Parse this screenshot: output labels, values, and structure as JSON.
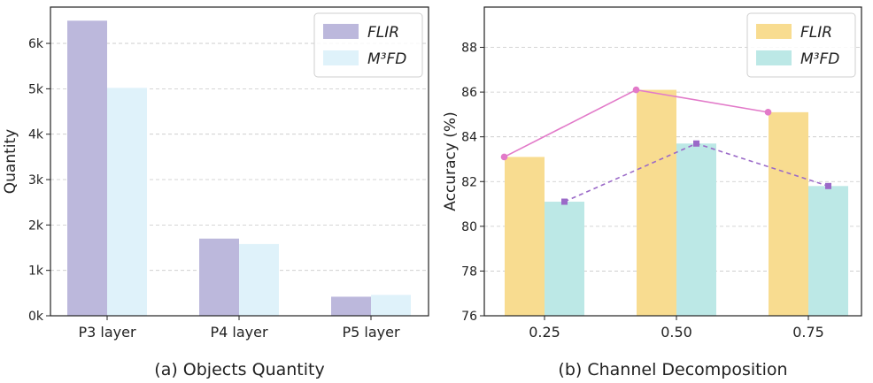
{
  "chart_data": [
    {
      "type": "bar",
      "title": "",
      "caption": "(a) Objects Quantity",
      "xlabel": "",
      "ylabel": "Quantity",
      "categories": [
        "P3 layer",
        "P4 layer",
        "P5 layer"
      ],
      "series": [
        {
          "name": "FLIR",
          "values": [
            6500,
            1700,
            420
          ],
          "color": "#bcb8dc"
        },
        {
          "name": "M3FD",
          "values": [
            5020,
            1580,
            460
          ],
          "color": "#dff2fa"
        }
      ],
      "ylim": [
        0,
        6800
      ],
      "yticks": [
        0,
        1000,
        2000,
        3000,
        4000,
        5000,
        6000
      ],
      "ytick_labels": [
        "0k",
        "1k",
        "2k",
        "3k",
        "4k",
        "5k",
        "6k"
      ],
      "grid": true,
      "legend": {
        "placement": "top-right",
        "labels": [
          "FLIR",
          "M³FD"
        ]
      }
    },
    {
      "type": "bar",
      "title": "",
      "caption": "(b) Channel Decomposition",
      "xlabel": "",
      "ylabel": "Accuracy (%)",
      "categories": [
        "0.25",
        "0.50",
        "0.75"
      ],
      "series": [
        {
          "name": "FLIR",
          "values": [
            83.1,
            86.1,
            85.1
          ],
          "color": "#f8dc90"
        },
        {
          "name": "M3FD",
          "values": [
            81.1,
            83.7,
            81.8
          ],
          "color": "#bce8e6"
        }
      ],
      "lines": [
        {
          "name": "FLIR trend",
          "values": [
            83.1,
            86.1,
            85.1
          ],
          "color": "#e27ac9",
          "style": "solid"
        },
        {
          "name": "M3FD trend",
          "values": [
            81.1,
            83.7,
            81.8
          ],
          "color": "#9b6ac8",
          "style": "dashed"
        }
      ],
      "ylim": [
        76,
        89.8
      ],
      "yticks": [
        76,
        78,
        80,
        82,
        84,
        86,
        88
      ],
      "ytick_labels": [
        "76",
        "78",
        "80",
        "82",
        "84",
        "86",
        "88"
      ],
      "grid": true,
      "legend": {
        "placement": "top-right",
        "labels": [
          "FLIR",
          "M³FD"
        ]
      }
    }
  ]
}
